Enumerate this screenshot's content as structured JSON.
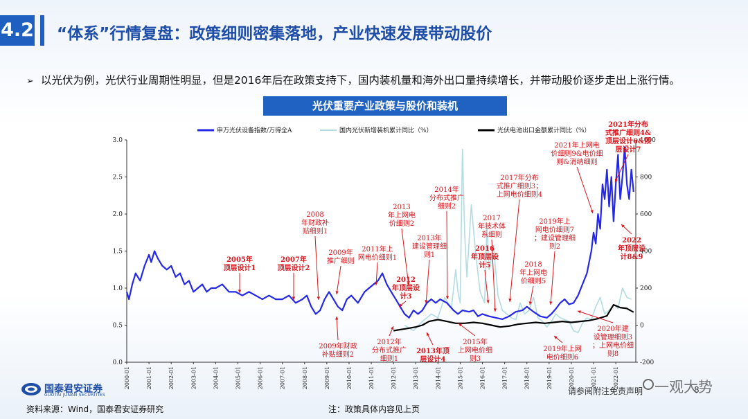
{
  "header": {
    "section_number": "4.2",
    "title": "“体系”行情复盘：政策细则密集落地，产业快速发展带动股价"
  },
  "bullet": {
    "marker": "➢",
    "text": "以光伏为例，光伏行业周期性明显，但是2016年后在政策支持下，国内装机量和海外出口量持续增长，并带动股价逐步走出上涨行情。"
  },
  "chart_title": "光伏重要产业政策与股价和装机",
  "chart_data": {
    "type": "line",
    "x_ticks": [
      "2000-01",
      "2001-01",
      "2002-01",
      "2003-01",
      "2004-01",
      "2005-01",
      "2006-01",
      "2007-01",
      "2008-01",
      "2009-01",
      "2010-01",
      "2011-01",
      "2012-01",
      "2013-01",
      "2014-01",
      "2015-01",
      "2016-01",
      "2017-01",
      "2018-01",
      "2019-01",
      "2020-01",
      "2021-01",
      "2022-01"
    ],
    "x_range": [
      2000.0,
      2022.9
    ],
    "y_left_ticks": [
      "0.0",
      "0.5",
      "1.0",
      "1.5",
      "2.0",
      "2.5",
      "3.0"
    ],
    "y_left_range": [
      0,
      3
    ],
    "y_right_ticks": [
      "-200",
      "0",
      "200",
      "400",
      "600",
      "800",
      "1000"
    ],
    "y_right_range": [
      -200,
      1000
    ],
    "legend": [
      "申万光伏设备指数/万得全A",
      "国内光伏新增装机累计同比（%）",
      "光伏电池出口金额累计同比（%）"
    ],
    "legend_position": "top",
    "colors": {
      "index": "#2427e6",
      "install": "#b2dce2",
      "export": "#000000",
      "annot": "#d9151b"
    },
    "series": [
      {
        "name": "申万光伏设备指数/万得全A",
        "axis": "left",
        "x": [
          2000.0,
          2000.1,
          2000.25,
          2000.4,
          2000.6,
          2000.8,
          2001.0,
          2001.1,
          2001.25,
          2001.4,
          2001.6,
          2001.8,
          2002.0,
          2002.2,
          2002.4,
          2002.6,
          2002.8,
          2003.0,
          2003.2,
          2003.4,
          2003.6,
          2003.8,
          2004.0,
          2004.3,
          2004.6,
          2004.9,
          2005.2,
          2005.5,
          2005.8,
          2006.1,
          2006.4,
          2006.7,
          2007.0,
          2007.3,
          2007.6,
          2007.9,
          2008.1,
          2008.3,
          2008.5,
          2008.7,
          2008.9,
          2009.1,
          2009.3,
          2009.5,
          2009.7,
          2009.9,
          2010.1,
          2010.4,
          2010.7,
          2010.9,
          2011.1,
          2011.3,
          2011.5,
          2011.7,
          2011.9,
          2012.1,
          2012.3,
          2012.5,
          2012.7,
          2012.9,
          2013.1,
          2013.3,
          2013.5,
          2013.7,
          2013.9,
          2014.1,
          2014.4,
          2014.7,
          2014.9,
          2015.1,
          2015.4,
          2015.6,
          2015.8,
          2016.0,
          2016.3,
          2016.6,
          2016.9,
          2017.2,
          2017.5,
          2017.8,
          2018.0,
          2018.3,
          2018.6,
          2018.9,
          2019.1,
          2019.3,
          2019.5,
          2019.7,
          2019.9,
          2020.1,
          2020.3,
          2020.5,
          2020.7,
          2020.9,
          2021.0,
          2021.1,
          2021.2,
          2021.3,
          2021.4,
          2021.5,
          2021.6,
          2021.7,
          2021.8,
          2021.9,
          2022.0,
          2022.1,
          2022.2,
          2022.3,
          2022.4,
          2022.5,
          2022.6,
          2022.7,
          2022.8
        ],
        "values": [
          0.95,
          0.85,
          1.05,
          1.2,
          1.1,
          1.3,
          1.45,
          1.35,
          1.5,
          1.4,
          1.3,
          1.25,
          1.3,
          1.15,
          1.2,
          1.05,
          1.1,
          0.95,
          1.0,
          1.05,
          0.95,
          1.0,
          1.0,
          1.05,
          0.95,
          0.95,
          0.9,
          0.95,
          0.9,
          0.85,
          0.9,
          0.85,
          0.85,
          0.9,
          0.8,
          0.85,
          0.9,
          0.75,
          0.65,
          0.7,
          0.85,
          0.95,
          0.85,
          0.75,
          0.7,
          0.85,
          0.9,
          0.8,
          0.95,
          1.0,
          1.05,
          1.1,
          1.2,
          1.05,
          0.95,
          0.85,
          0.75,
          0.65,
          0.6,
          0.7,
          0.65,
          0.7,
          0.8,
          0.85,
          0.8,
          0.85,
          0.8,
          0.7,
          0.65,
          0.7,
          0.68,
          0.7,
          0.62,
          0.65,
          0.62,
          0.6,
          0.58,
          0.62,
          0.68,
          0.7,
          0.75,
          0.68,
          0.62,
          0.6,
          0.65,
          0.72,
          0.8,
          0.85,
          0.78,
          0.8,
          0.9,
          1.05,
          1.2,
          1.5,
          1.75,
          1.6,
          2.0,
          1.8,
          2.4,
          2.2,
          2.6,
          2.1,
          2.5,
          1.9,
          2.4,
          2.8,
          2.2,
          2.5,
          2.9,
          2.4,
          2.2,
          2.6,
          2.3
        ]
      },
      {
        "name": "国内光伏新增装机累计同比（%）",
        "axis": "right",
        "x": [
          2012.5,
          2012.9,
          2013.3,
          2013.7,
          2014.0,
          2014.3,
          2014.6,
          2014.8,
          2014.9,
          2015.0,
          2015.1,
          2015.2,
          2015.3,
          2015.5,
          2015.7,
          2015.9,
          2016.1,
          2016.2,
          2016.3,
          2016.5,
          2016.7,
          2016.9,
          2017.1,
          2017.3,
          2017.5,
          2017.7,
          2017.9,
          2018.1,
          2018.3,
          2018.5,
          2018.7,
          2018.9,
          2019.1,
          2019.3,
          2019.5,
          2019.7,
          2019.9,
          2020.1,
          2020.3,
          2020.5,
          2020.7,
          2020.9,
          2021.1,
          2021.3,
          2021.5,
          2021.7,
          2021.9,
          2022.1,
          2022.3,
          2022.5,
          2022.7
        ],
        "values": [
          0,
          -30,
          20,
          60,
          40,
          150,
          90,
          300,
          180,
          120,
          950,
          500,
          260,
          650,
          380,
          180,
          120,
          540,
          300,
          420,
          160,
          80,
          60,
          40,
          30,
          120,
          60,
          80,
          150,
          40,
          20,
          -10,
          20,
          60,
          40,
          30,
          20,
          -30,
          -40,
          10,
          40,
          30,
          100,
          150,
          60,
          80,
          110,
          90,
          200,
          150,
          140
        ]
      },
      {
        "name": "光伏电池出口金额累计同比（%）",
        "axis": "right",
        "x": [
          2012.0,
          2012.5,
          2013.0,
          2013.3,
          2013.6,
          2014.0,
          2014.4,
          2014.8,
          2015.2,
          2015.6,
          2016.0,
          2016.4,
          2016.8,
          2017.2,
          2017.6,
          2018.0,
          2018.4,
          2018.8,
          2019.2,
          2019.6,
          2020.0,
          2020.4,
          2020.8,
          2021.2,
          2021.6,
          2021.9,
          2022.0,
          2022.2,
          2022.5,
          2022.8
        ],
        "values": [
          -30,
          -20,
          -10,
          0,
          20,
          30,
          20,
          10,
          10,
          15,
          10,
          0,
          -10,
          -5,
          5,
          10,
          15,
          10,
          15,
          20,
          15,
          20,
          25,
          35,
          50,
          110,
          105,
          95,
          90,
          70
        ]
      }
    ],
    "annotations": [
      {
        "text": "2005年顶层设计1",
        "bold": true
      },
      {
        "text": "2007年顶层设计2",
        "bold": true
      },
      {
        "text": "2008年财政补贴细则1",
        "bold": false
      },
      {
        "text": "2009年推广细则",
        "bold": false
      },
      {
        "text": "2009年财政补贴细则2",
        "bold": false
      },
      {
        "text": "2011年上网电价细则1",
        "bold": false
      },
      {
        "text": "2012年顶层设计3",
        "bold": true
      },
      {
        "text": "2012年分布式推广细则1",
        "bold": false
      },
      {
        "text": "2013年上网电价细则2",
        "bold": false
      },
      {
        "text": "2013年建设管理细则1",
        "bold": false
      },
      {
        "text": "2013年顶层设计4",
        "bold": true
      },
      {
        "text": "2014年分布式推广细则2",
        "bold": false
      },
      {
        "text": "2015年上网电价细则3",
        "bold": false
      },
      {
        "text": "2016年顶层设计5",
        "bold": true
      },
      {
        "text": "2017年技术体系细则",
        "bold": false
      },
      {
        "text": "2017年分布式推广细则3；上网电价细则4",
        "bold": false
      },
      {
        "text": "2018年上网电价细则5",
        "bold": false
      },
      {
        "text": "2019年上网电价细则7；建设管理细则2",
        "bold": false
      },
      {
        "text": "2019年上网电价细则6",
        "bold": false
      },
      {
        "text": "2020年建设管理细则3；上网电价细则8",
        "bold": false
      },
      {
        "text": "2021年上网电价细则9&电价细则&消纳细则",
        "bold": false
      },
      {
        "text": "2021年分布式推广细则4&顶层设计6&顶层设计7",
        "bold": true
      },
      {
        "text": "2022年顶层设计8&9",
        "bold": true
      }
    ]
  },
  "footer": {
    "brand_name": "国泰君安证券",
    "brand_sub": "GUOTAI JUNAN SECURITIES",
    "source": "资料来源：Wind，国泰君安证券研究",
    "note": "注：政策具体内容见上页",
    "disclaimer": "请参阅附注免责声明",
    "page": "8",
    "watermark": "一观大势"
  }
}
